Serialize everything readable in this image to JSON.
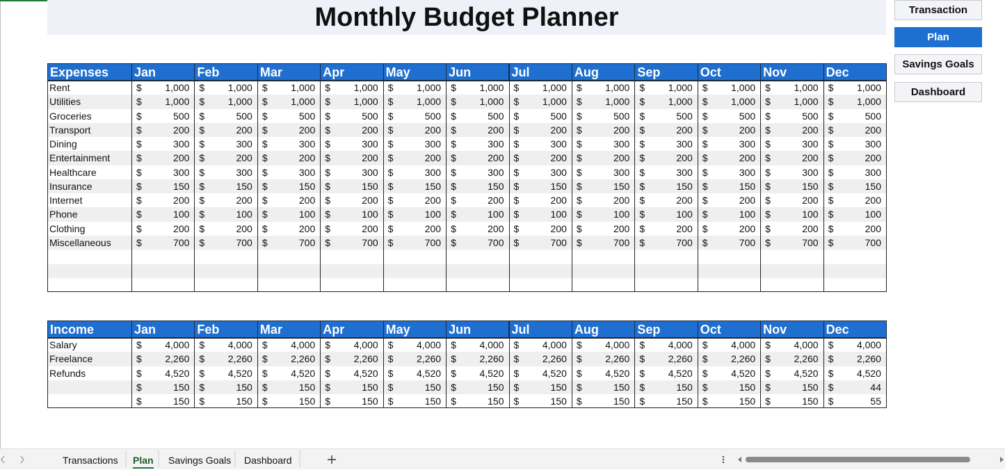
{
  "header": {
    "title": "Monthly Budget Planner"
  },
  "nav_buttons": [
    "Transaction",
    "Plan",
    "Savings Goals",
    "Dashboard"
  ],
  "currency": "$",
  "months": [
    "Jan",
    "Feb",
    "Mar",
    "Apr",
    "May",
    "Jun",
    "Jul",
    "Aug",
    "Sep",
    "Oct",
    "Nov",
    "Dec"
  ],
  "expenses": {
    "title": "Expenses",
    "rows": [
      {
        "label": "Rent",
        "values": [
          "1,000",
          "1,000",
          "1,000",
          "1,000",
          "1,000",
          "1,000",
          "1,000",
          "1,000",
          "1,000",
          "1,000",
          "1,000",
          "1,000"
        ]
      },
      {
        "label": "Utilities",
        "values": [
          "1,000",
          "1,000",
          "1,000",
          "1,000",
          "1,000",
          "1,000",
          "1,000",
          "1,000",
          "1,000",
          "1,000",
          "1,000",
          "1,000"
        ]
      },
      {
        "label": "Groceries",
        "values": [
          "500",
          "500",
          "500",
          "500",
          "500",
          "500",
          "500",
          "500",
          "500",
          "500",
          "500",
          "500"
        ]
      },
      {
        "label": "Transport",
        "values": [
          "200",
          "200",
          "200",
          "200",
          "200",
          "200",
          "200",
          "200",
          "200",
          "200",
          "200",
          "200"
        ]
      },
      {
        "label": "Dining",
        "values": [
          "300",
          "300",
          "300",
          "300",
          "300",
          "300",
          "300",
          "300",
          "300",
          "300",
          "300",
          "300"
        ]
      },
      {
        "label": "Entertainment",
        "values": [
          "200",
          "200",
          "200",
          "200",
          "200",
          "200",
          "200",
          "200",
          "200",
          "200",
          "200",
          "200"
        ]
      },
      {
        "label": "Healthcare",
        "values": [
          "300",
          "300",
          "300",
          "300",
          "300",
          "300",
          "300",
          "300",
          "300",
          "300",
          "300",
          "300"
        ]
      },
      {
        "label": "Insurance",
        "values": [
          "150",
          "150",
          "150",
          "150",
          "150",
          "150",
          "150",
          "150",
          "150",
          "150",
          "150",
          "150"
        ]
      },
      {
        "label": "Internet",
        "values": [
          "200",
          "200",
          "200",
          "200",
          "200",
          "200",
          "200",
          "200",
          "200",
          "200",
          "200",
          "200"
        ]
      },
      {
        "label": "Phone",
        "values": [
          "100",
          "100",
          "100",
          "100",
          "100",
          "100",
          "100",
          "100",
          "100",
          "100",
          "100",
          "100"
        ]
      },
      {
        "label": "Clothing",
        "values": [
          "200",
          "200",
          "200",
          "200",
          "200",
          "200",
          "200",
          "200",
          "200",
          "200",
          "200",
          "200"
        ]
      },
      {
        "label": "Miscellaneous",
        "values": [
          "700",
          "700",
          "700",
          "700",
          "700",
          "700",
          "700",
          "700",
          "700",
          "700",
          "700",
          "700"
        ]
      }
    ]
  },
  "income": {
    "title": "Income",
    "rows": [
      {
        "label": "Salary",
        "values": [
          "4,000",
          "4,000",
          "4,000",
          "4,000",
          "4,000",
          "4,000",
          "4,000",
          "4,000",
          "4,000",
          "4,000",
          "4,000",
          "4,000"
        ]
      },
      {
        "label": "Freelance",
        "values": [
          "2,260",
          "2,260",
          "2,260",
          "2,260",
          "2,260",
          "2,260",
          "2,260",
          "2,260",
          "2,260",
          "2,260",
          "2,260",
          "2,260"
        ]
      },
      {
        "label": "Refunds",
        "values": [
          "4,520",
          "4,520",
          "4,520",
          "4,520",
          "4,520",
          "4,520",
          "4,520",
          "4,520",
          "4,520",
          "4,520",
          "4,520",
          "4,520"
        ]
      },
      {
        "label": null,
        "values": [
          "150",
          "150",
          "150",
          "150",
          "150",
          "150",
          "150",
          "150",
          "150",
          "150",
          "150",
          "44"
        ]
      },
      {
        "label": null,
        "values": [
          "150",
          "150",
          "150",
          "150",
          "150",
          "150",
          "150",
          "150",
          "150",
          "150",
          "150",
          "55"
        ]
      }
    ]
  },
  "sheet_tabs": [
    "Transactions",
    "Plan",
    "Savings Goals",
    "Dashboard"
  ]
}
